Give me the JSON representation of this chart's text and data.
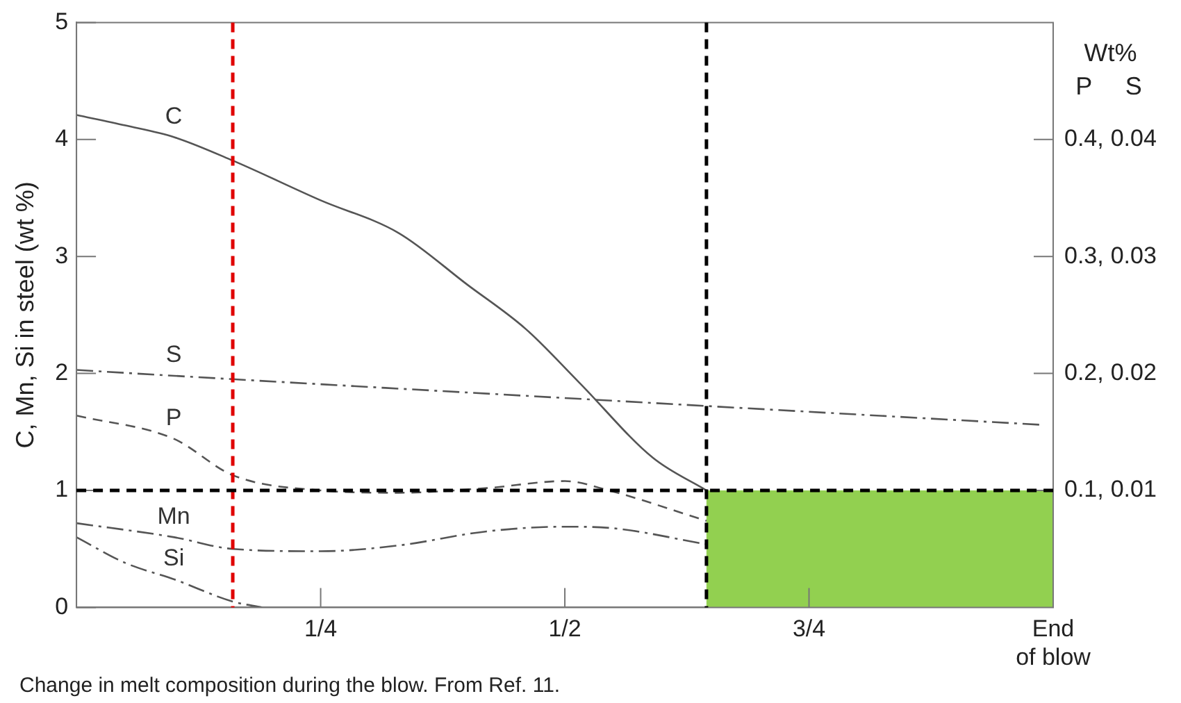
{
  "chart_data": {
    "type": "line",
    "ylabel": "C, Mn, Si in steel (wt %)",
    "annotations": [
      "Change in melt composition during the blow. From Ref. 11."
    ],
    "xlim": [
      0,
      1
    ],
    "xticks": [
      {
        "value": 0.25,
        "label": "1/4"
      },
      {
        "value": 0.5,
        "label": "1/2"
      },
      {
        "value": 0.75,
        "label": "3/4"
      },
      {
        "value": 1,
        "label": "End\nof blow"
      }
    ],
    "ylim": [
      0,
      5
    ],
    "yticks": [
      0,
      1,
      2,
      3,
      4,
      5
    ],
    "y2label": "Wt%\nP",
    "y3label": "S",
    "y2lim": [
      0,
      0.5
    ],
    "y2ticks": [
      {
        "value": 0.1,
        "label": "0.1,"
      },
      {
        "value": 0.2,
        "label": "0.2,"
      },
      {
        "value": 0.3,
        "label": "0.3,"
      },
      {
        "value": 0.4,
        "label": "0.4,"
      }
    ],
    "y3lim": [
      0,
      0.05
    ],
    "y3ticks": [
      0.01,
      0.02,
      0.03,
      0.04
    ],
    "grid": false,
    "legend": false,
    "marker": "none",
    "series": [
      {
        "name": "C",
        "color": "#555555",
        "line_style": "solid",
        "x": [
          0,
          0.05,
          0.1,
          0.16,
          0.25,
          0.33,
          0.4,
          0.46,
          0.515,
          0.59,
          0.645
        ],
        "values": [
          4.21,
          4.12,
          4.02,
          3.82,
          3.48,
          3.2,
          2.76,
          2.38,
          1.92,
          1.28,
          1.0
        ]
      },
      {
        "name": "S",
        "color": "#555555",
        "line_style": "dashdot",
        "axis": "y3",
        "x": [
          0,
          0.1,
          0.5,
          0.99
        ],
        "values": [
          0.0203,
          0.0198,
          0.0179,
          0.0156
        ]
      },
      {
        "name": "P",
        "color": "#555555",
        "line_style": "dashed",
        "axis": "y2",
        "x": [
          0,
          0.1,
          0.16,
          0.25,
          0.33,
          0.42,
          0.5,
          0.545,
          0.645
        ],
        "values": [
          0.164,
          0.144,
          0.113,
          0.1,
          0.098,
          0.102,
          0.108,
          0.1,
          0.074
        ]
      },
      {
        "name": "Mn",
        "color": "#555555",
        "line_style": "dashdot",
        "x": [
          0,
          0.1,
          0.16,
          0.25,
          0.33,
          0.42,
          0.5,
          0.545,
          0.645
        ],
        "values": [
          0.72,
          0.6,
          0.5,
          0.48,
          0.53,
          0.65,
          0.69,
          0.68,
          0.54
        ]
      },
      {
        "name": "Si",
        "color": "#555555",
        "line_style": "dashdot",
        "x": [
          0,
          0.05,
          0.1,
          0.16,
          0.19
        ],
        "values": [
          0.6,
          0.38,
          0.24,
          0.05,
          0
        ]
      }
    ],
    "ref_lines": [
      {
        "axis": "x",
        "value": 0.16,
        "color": "#e00000",
        "line_style": "dashed"
      },
      {
        "axis": "x",
        "value": 0.645,
        "color": "#000000",
        "line_style": "dashed"
      },
      {
        "axis": "y",
        "value": 1,
        "color": "#000000",
        "line_style": "dashed"
      }
    ],
    "bands": [
      {
        "axis": "x",
        "from": 0.645,
        "to": 1,
        "color": "#92d050"
      }
    ]
  }
}
